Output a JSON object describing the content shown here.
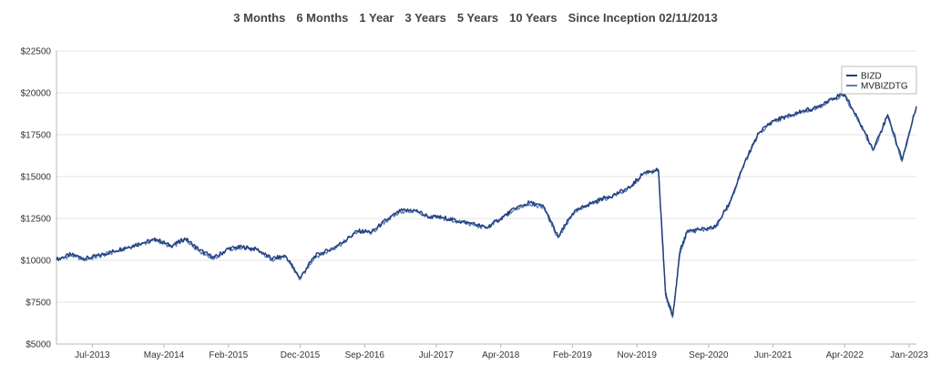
{
  "range_buttons": [
    {
      "label": "3 Months"
    },
    {
      "label": "6 Months"
    },
    {
      "label": "1 Year"
    },
    {
      "label": "3 Years"
    },
    {
      "label": "5 Years"
    },
    {
      "label": "10 Years"
    },
    {
      "label": "Since Inception 02/11/2013"
    }
  ],
  "chart_data": {
    "type": "line",
    "title": "",
    "xlabel": "",
    "ylabel": "",
    "ylim": [
      5000,
      22500
    ],
    "y_ticks": [
      5000,
      7500,
      10000,
      12500,
      15000,
      17500,
      20000,
      22500
    ],
    "y_tick_labels": [
      "$5000",
      "$7500",
      "$10000",
      "$12500",
      "$15000",
      "$17500",
      "$20000",
      "$22500"
    ],
    "xlim": [
      "2013-02",
      "2023-02"
    ],
    "x_ticks": [
      "2013-07",
      "2014-05",
      "2015-02",
      "2015-12",
      "2016-09",
      "2017-07",
      "2018-04",
      "2019-02",
      "2019-11",
      "2020-09",
      "2021-06",
      "2022-04",
      "2023-01"
    ],
    "x_tick_labels": [
      "Jul-2013",
      "May-2014",
      "Feb-2015",
      "Dec-2015",
      "Sep-2016",
      "Jul-2017",
      "Apr-2018",
      "Feb-2019",
      "Nov-2019",
      "Sep-2020",
      "Jun-2021",
      "Apr-2022",
      "Jan-2023"
    ],
    "grid": "horizontal",
    "legend_position": "top-right",
    "colors": {
      "BIZD": "#1f3d7a",
      "MVBIZDTG": "#5b7fb8"
    },
    "x": [
      "2013-02",
      "2013-04",
      "2013-06",
      "2013-08",
      "2013-10",
      "2013-12",
      "2014-02",
      "2014-04",
      "2014-06",
      "2014-08",
      "2014-10",
      "2014-12",
      "2015-02",
      "2015-04",
      "2015-06",
      "2015-08",
      "2015-10",
      "2015-12",
      "2016-02",
      "2016-04",
      "2016-06",
      "2016-08",
      "2016-10",
      "2016-12",
      "2017-02",
      "2017-04",
      "2017-06",
      "2017-08",
      "2017-10",
      "2017-12",
      "2018-02",
      "2018-04",
      "2018-06",
      "2018-08",
      "2018-10",
      "2018-12",
      "2019-02",
      "2019-04",
      "2019-06",
      "2019-08",
      "2019-10",
      "2019-12",
      "2020-02",
      "2020-03",
      "2020-04",
      "2020-05",
      "2020-06",
      "2020-08",
      "2020-10",
      "2020-12",
      "2021-02",
      "2021-04",
      "2021-06",
      "2021-08",
      "2021-10",
      "2021-12",
      "2022-02",
      "2022-04",
      "2022-06",
      "2022-08",
      "2022-10",
      "2022-12",
      "2023-02"
    ],
    "series": [
      {
        "name": "BIZD",
        "values": [
          10050,
          10350,
          10100,
          10300,
          10550,
          10800,
          11050,
          11250,
          10850,
          11300,
          10600,
          10150,
          10700,
          10800,
          10650,
          10100,
          10250,
          8950,
          10250,
          10600,
          11100,
          11750,
          11700,
          12400,
          12950,
          13000,
          12600,
          12550,
          12350,
          12200,
          11950,
          12500,
          13100,
          13450,
          13200,
          11400,
          12800,
          13300,
          13650,
          13950,
          14350,
          15250,
          15400,
          8000,
          6700,
          10500,
          11750,
          11850,
          12000,
          13500,
          15800,
          17600,
          18350,
          18600,
          18900,
          19100,
          19650,
          19900,
          18300,
          16650,
          18700,
          16000,
          19200
        ]
      },
      {
        "name": "MVBIZDTG",
        "values": [
          10000,
          10300,
          10050,
          10250,
          10500,
          10750,
          11000,
          11200,
          10800,
          11250,
          10550,
          10100,
          10650,
          10750,
          10600,
          10050,
          10200,
          8850,
          10200,
          10550,
          11050,
          11700,
          11650,
          12350,
          12900,
          12950,
          12550,
          12500,
          12300,
          12150,
          11900,
          12450,
          13050,
          13400,
          13150,
          11350,
          12750,
          13250,
          13600,
          13900,
          14300,
          15200,
          15350,
          7900,
          6600,
          10450,
          11700,
          11800,
          11950,
          13450,
          15750,
          17550,
          18300,
          18550,
          18850,
          19050,
          19600,
          19850,
          18250,
          16550,
          18650,
          15900,
          19150
        ]
      }
    ]
  }
}
